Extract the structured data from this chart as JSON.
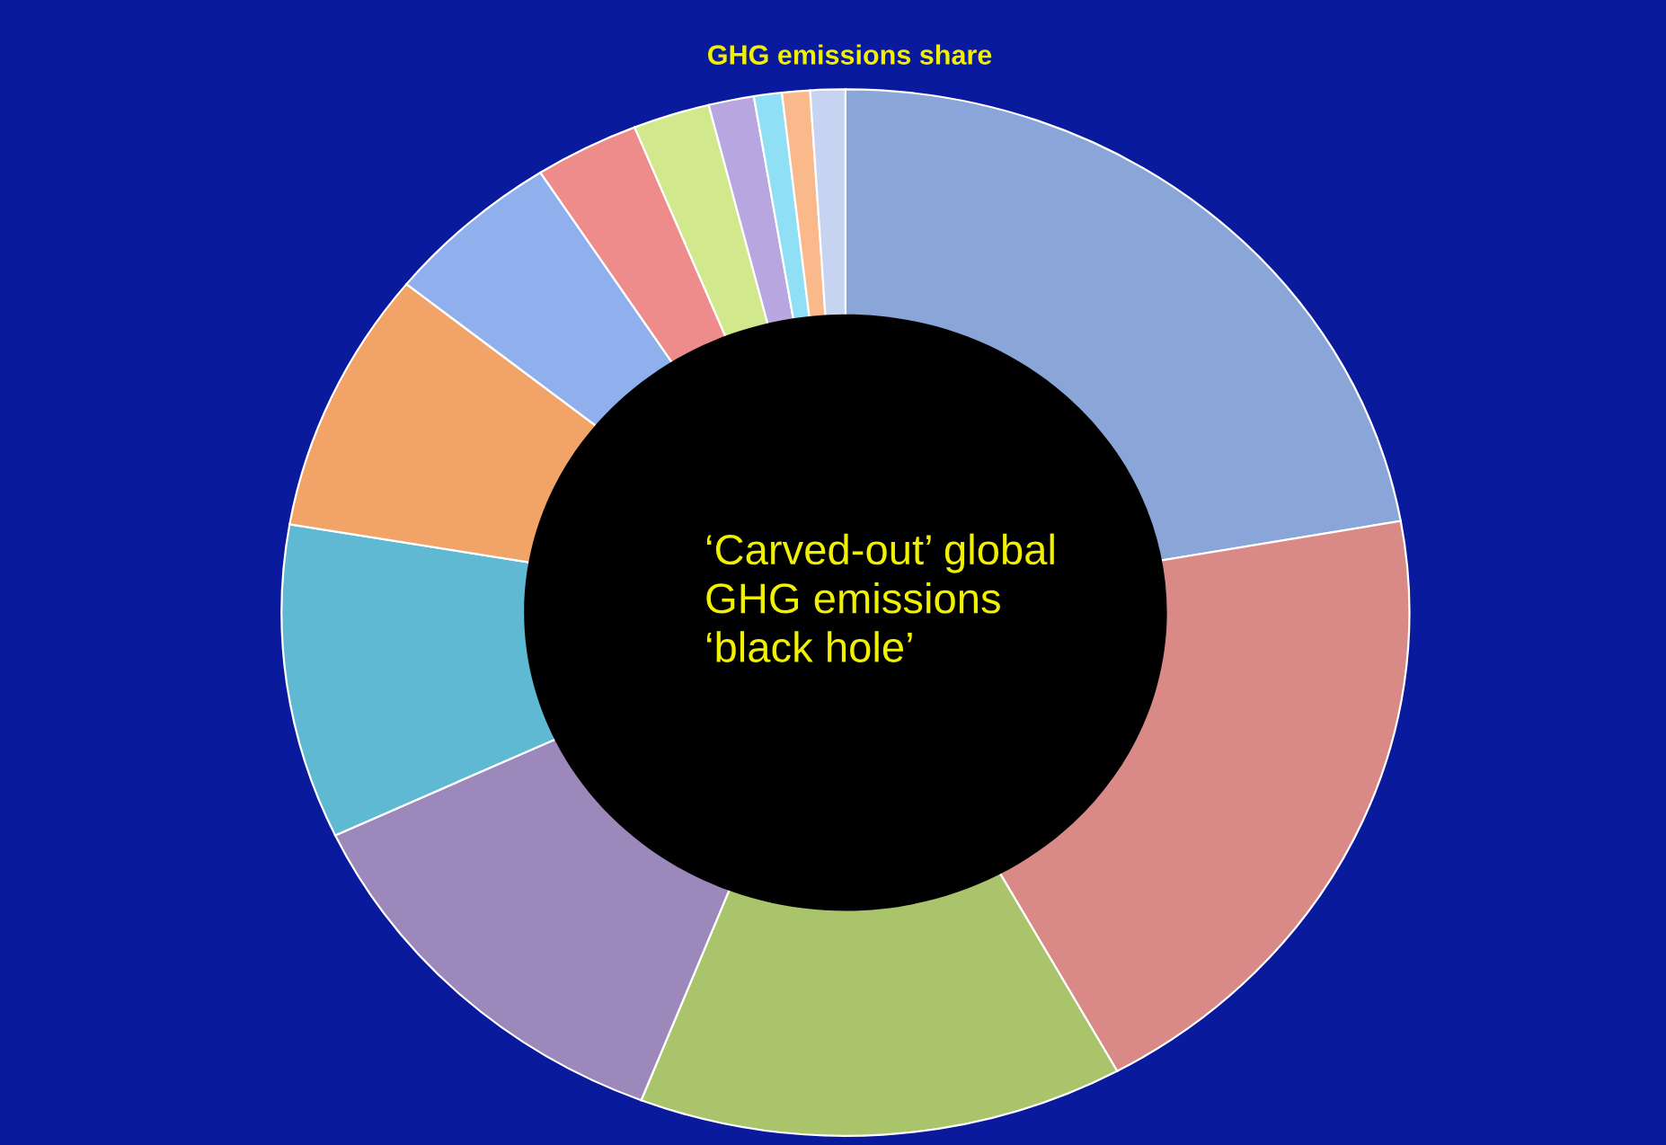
{
  "chart_data": {
    "type": "donut",
    "title": "GHG emissions share",
    "categories": [
      null,
      null,
      null,
      null,
      null,
      null,
      null,
      null,
      null,
      null,
      null,
      null,
      null
    ],
    "values": [
      22.2,
      19.8,
      13.9,
      12.1,
      9.7,
      8.1,
      5.1,
      3.0,
      2.2,
      1.3,
      0.8,
      0.8,
      1.0
    ],
    "colors": [
      "#8aa6d8",
      "#d98a86",
      "#a9c46a",
      "#9c88bb",
      "#5fb9d3",
      "#f2a368",
      "#8fb0ec",
      "#ee8c8c",
      "#d2e88c",
      "#b7a6e0",
      "#8fe0f4",
      "#f9b98a",
      "#c7d4f1"
    ],
    "annotations": [
      "‘Carved-out’ global\nGHG emissions\n‘black hole’"
    ],
    "legend": false
  }
}
